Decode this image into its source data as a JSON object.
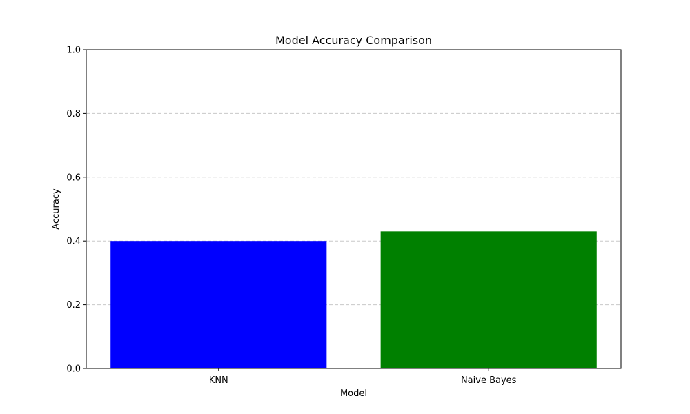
{
  "chart_data": {
    "type": "bar",
    "title": "Model Accuracy Comparison",
    "xlabel": "Model",
    "ylabel": "Accuracy",
    "categories": [
      "KNN",
      "Naive Bayes"
    ],
    "values": [
      0.4,
      0.43
    ],
    "colors": [
      "#0000ff",
      "#008000"
    ],
    "ylim": [
      0,
      1.0
    ],
    "yticks": [
      0.0,
      0.2,
      0.4,
      0.6,
      0.8,
      1.0
    ],
    "ytick_labels": [
      "0.0",
      "0.2",
      "0.4",
      "0.6",
      "0.8",
      "1.0"
    ],
    "grid": "y-dashed"
  }
}
